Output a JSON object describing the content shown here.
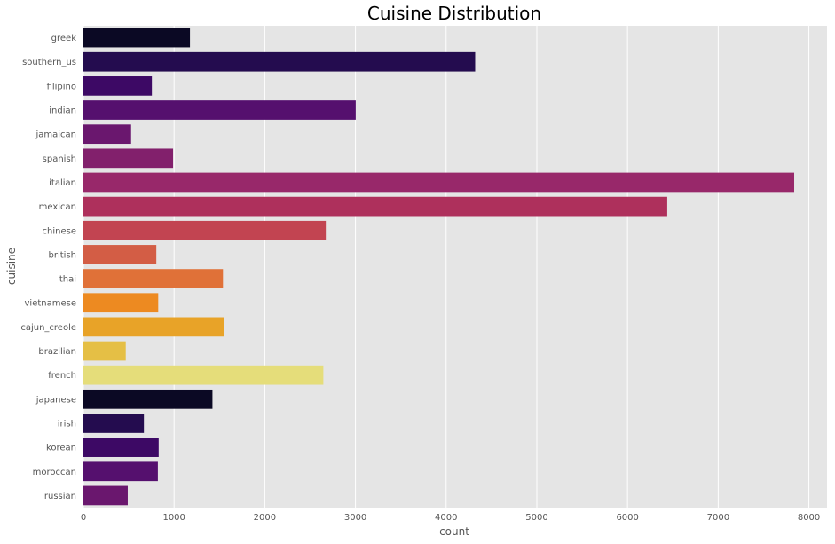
{
  "chart_data": {
    "type": "bar",
    "orientation": "horizontal",
    "title": "Cuisine Distribution",
    "xlabel": "count",
    "ylabel": "cuisine",
    "xlim": [
      0,
      8200
    ],
    "xticks": [
      0,
      1000,
      2000,
      3000,
      4000,
      5000,
      6000,
      7000,
      8000
    ],
    "grid": true,
    "categories": [
      "greek",
      "southern_us",
      "filipino",
      "indian",
      "jamaican",
      "spanish",
      "italian",
      "mexican",
      "chinese",
      "british",
      "thai",
      "vietnamese",
      "cajun_creole",
      "brazilian",
      "french",
      "japanese",
      "irish",
      "korean",
      "moroccan",
      "russian"
    ],
    "values": [
      1175,
      4320,
      755,
      3003,
      526,
      989,
      7838,
      6438,
      2673,
      804,
      1539,
      825,
      1546,
      467,
      2646,
      1423,
      667,
      830,
      821,
      489
    ],
    "colors": [
      "#0b0924",
      "#240c4f",
      "#3d0965",
      "#55106e",
      "#6a176e",
      "#82206c",
      "#98286a",
      "#ae305c",
      "#c24451",
      "#d35d45",
      "#e07138",
      "#ed8a21",
      "#e8a328",
      "#e5bf45",
      "#e5dd7a",
      "#0b0924",
      "#240c4f",
      "#3d0965",
      "#55106e",
      "#6a176e"
    ]
  },
  "style": {
    "plot_background": "#e5e5e5",
    "grid_color": "#ffffff",
    "text_color": "#555555"
  }
}
